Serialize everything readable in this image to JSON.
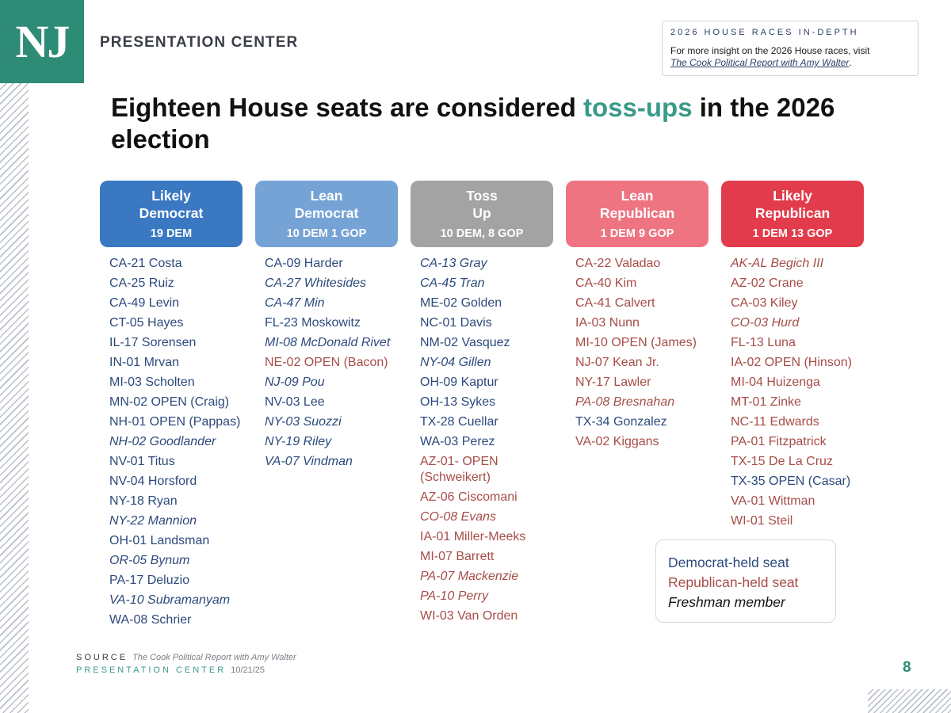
{
  "brand": {
    "logo_text": "NJ",
    "name": "PRESENTATION CENTER"
  },
  "insight": {
    "title": "2026 HOUSE RACES IN-DEPTH",
    "text": "For more insight on the 2026 House races, visit",
    "link": "The Cook Political Report with Amy Walter",
    "link_suffix": "."
  },
  "headline": {
    "before": "Eighteen House seats are considered ",
    "highlight": "toss-ups",
    "after": " in the 2026 election"
  },
  "colors": {
    "likely_dem": "#3a78c2",
    "lean_dem": "#76a3d6",
    "toss_up": "#a3a3a3",
    "lean_rep": "#ee7482",
    "likely_rep": "#e23b4b",
    "dem_text": "#2c4a7c",
    "rep_text": "#a64d47",
    "accent": "#3a9a8a"
  },
  "categories": [
    {
      "title": "Likely Democrat",
      "count": "19 DEM",
      "seats": [
        {
          "name": "CA-21 Costa",
          "party": "dem",
          "fresh": false
        },
        {
          "name": "CA-25 Ruiz",
          "party": "dem",
          "fresh": false
        },
        {
          "name": "CA-49 Levin",
          "party": "dem",
          "fresh": false
        },
        {
          "name": "CT-05 Hayes",
          "party": "dem",
          "fresh": false
        },
        {
          "name": "IL-17 Sorensen",
          "party": "dem",
          "fresh": false
        },
        {
          "name": "IN-01 Mrvan",
          "party": "dem",
          "fresh": false
        },
        {
          "name": "MI-03 Scholten",
          "party": "dem",
          "fresh": false
        },
        {
          "name": "MN-02 OPEN (Craig)",
          "party": "dem",
          "fresh": false
        },
        {
          "name": "NH-01 OPEN (Pappas)",
          "party": "dem",
          "fresh": false
        },
        {
          "name": "NH-02 Goodlander",
          "party": "dem",
          "fresh": true
        },
        {
          "name": "NV-01 Titus",
          "party": "dem",
          "fresh": false
        },
        {
          "name": "NV-04 Horsford",
          "party": "dem",
          "fresh": false
        },
        {
          "name": "NY-18 Ryan",
          "party": "dem",
          "fresh": false
        },
        {
          "name": "NY-22 Mannion",
          "party": "dem",
          "fresh": true
        },
        {
          "name": "OH-01 Landsman",
          "party": "dem",
          "fresh": false
        },
        {
          "name": "OR-05 Bynum",
          "party": "dem",
          "fresh": true
        },
        {
          "name": "PA-17 Deluzio",
          "party": "dem",
          "fresh": false
        },
        {
          "name": "VA-10 Subramanyam",
          "party": "dem",
          "fresh": true
        },
        {
          "name": "WA-08 Schrier",
          "party": "dem",
          "fresh": false
        }
      ]
    },
    {
      "title": "Lean Democrat",
      "count": "10 DEM 1 GOP",
      "seats": [
        {
          "name": "CA-09 Harder",
          "party": "dem",
          "fresh": false
        },
        {
          "name": "CA-27 Whitesides",
          "party": "dem",
          "fresh": true
        },
        {
          "name": "CA-47 Min",
          "party": "dem",
          "fresh": true
        },
        {
          "name": "FL-23 Moskowitz",
          "party": "dem",
          "fresh": false
        },
        {
          "name": "MI-08 McDonald Rivet",
          "party": "dem",
          "fresh": true
        },
        {
          "name": "NE-02 OPEN (Bacon)",
          "party": "rep",
          "fresh": false
        },
        {
          "name": "NJ-09 Pou",
          "party": "dem",
          "fresh": true
        },
        {
          "name": "NV-03 Lee",
          "party": "dem",
          "fresh": false
        },
        {
          "name": "NY-03 Suozzi",
          "party": "dem",
          "fresh": true
        },
        {
          "name": "NY-19 Riley",
          "party": "dem",
          "fresh": true
        },
        {
          "name": "VA-07 Vindman",
          "party": "dem",
          "fresh": true
        }
      ]
    },
    {
      "title": "Toss Up",
      "count": "10 DEM, 8 GOP",
      "seats": [
        {
          "name": "CA-13 Gray",
          "party": "dem",
          "fresh": true
        },
        {
          "name": "CA-45 Tran",
          "party": "dem",
          "fresh": true
        },
        {
          "name": "ME-02 Golden",
          "party": "dem",
          "fresh": false
        },
        {
          "name": "NC-01 Davis",
          "party": "dem",
          "fresh": false
        },
        {
          "name": "NM-02 Vasquez",
          "party": "dem",
          "fresh": false
        },
        {
          "name": "NY-04 Gillen",
          "party": "dem",
          "fresh": true
        },
        {
          "name": "OH-09 Kaptur",
          "party": "dem",
          "fresh": false
        },
        {
          "name": "OH-13 Sykes",
          "party": "dem",
          "fresh": false
        },
        {
          "name": "TX-28 Cuellar",
          "party": "dem",
          "fresh": false
        },
        {
          "name": "WA-03 Perez",
          "party": "dem",
          "fresh": false
        },
        {
          "name": "AZ-01- OPEN (Schweikert)",
          "party": "rep",
          "fresh": false
        },
        {
          "name": "AZ-06 Ciscomani",
          "party": "rep",
          "fresh": false
        },
        {
          "name": "CO-08 Evans",
          "party": "rep",
          "fresh": true
        },
        {
          "name": "IA-01 Miller-Meeks",
          "party": "rep",
          "fresh": false
        },
        {
          "name": "MI-07 Barrett",
          "party": "rep",
          "fresh": false
        },
        {
          "name": "PA-07 Mackenzie",
          "party": "rep",
          "fresh": true
        },
        {
          "name": "PA-10 Perry",
          "party": "rep",
          "fresh": true
        },
        {
          "name": "WI-03 Van Orden",
          "party": "rep",
          "fresh": false
        }
      ]
    },
    {
      "title": "Lean Republican",
      "count": "1 DEM 9 GOP",
      "seats": [
        {
          "name": "CA-22 Valadao",
          "party": "rep",
          "fresh": false
        },
        {
          "name": "CA-40 Kim",
          "party": "rep",
          "fresh": false
        },
        {
          "name": "CA-41 Calvert",
          "party": "rep",
          "fresh": false
        },
        {
          "name": "IA-03 Nunn",
          "party": "rep",
          "fresh": false
        },
        {
          "name": "MI-10 OPEN (James)",
          "party": "rep",
          "fresh": false
        },
        {
          "name": "NJ-07 Kean Jr.",
          "party": "rep",
          "fresh": false
        },
        {
          "name": "NY-17 Lawler",
          "party": "rep",
          "fresh": false
        },
        {
          "name": "PA-08 Bresnahan",
          "party": "rep",
          "fresh": true
        },
        {
          "name": "TX-34 Gonzalez",
          "party": "dem",
          "fresh": false
        },
        {
          "name": "VA-02 Kiggans",
          "party": "rep",
          "fresh": false
        }
      ]
    },
    {
      "title": "Likely Republican",
      "count": "1 DEM 13 GOP",
      "seats": [
        {
          "name": "AK-AL Begich III",
          "party": "rep",
          "fresh": true
        },
        {
          "name": "AZ-02 Crane",
          "party": "rep",
          "fresh": false
        },
        {
          "name": "CA-03 Kiley",
          "party": "rep",
          "fresh": false
        },
        {
          "name": "CO-03 Hurd",
          "party": "rep",
          "fresh": true
        },
        {
          "name": "FL-13 Luna",
          "party": "rep",
          "fresh": false
        },
        {
          "name": "IA-02 OPEN (Hinson)",
          "party": "rep",
          "fresh": false
        },
        {
          "name": "MI-04 Huizenga",
          "party": "rep",
          "fresh": false
        },
        {
          "name": "MT-01 Zinke",
          "party": "rep",
          "fresh": false
        },
        {
          "name": "NC-11 Edwards",
          "party": "rep",
          "fresh": false
        },
        {
          "name": "PA-01 Fitzpatrick",
          "party": "rep",
          "fresh": false
        },
        {
          "name": "TX-15 De La Cruz",
          "party": "rep",
          "fresh": false
        },
        {
          "name": "TX-35 OPEN (Casar)",
          "party": "dem",
          "fresh": false
        },
        {
          "name": "VA-01 Wittman",
          "party": "rep",
          "fresh": false
        },
        {
          "name": "WI-01 Steil",
          "party": "rep",
          "fresh": false
        }
      ]
    }
  ],
  "legend": {
    "dem": "Democrat-held seat",
    "rep": "Republican-held seat",
    "fresh": "Freshman member"
  },
  "footer": {
    "source_label": "SOURCE",
    "source_text": "The Cook Political Report with Amy Walter",
    "pc_label": "PRESENTATION CENTER",
    "date": "10/21/25",
    "page": "8"
  }
}
